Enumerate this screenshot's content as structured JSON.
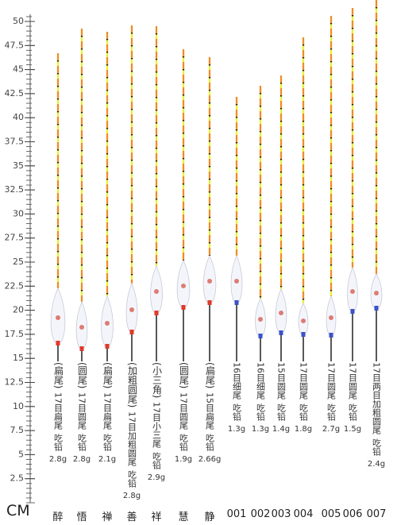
{
  "ruler": {
    "unit": "CM",
    "ticks": [
      2.5,
      5,
      7.5,
      10,
      12.5,
      15,
      17.5,
      20,
      22.5,
      25,
      27.5,
      30,
      32.5,
      35,
      37.5,
      40,
      42.5,
      45,
      47.5,
      50
    ]
  },
  "floats": [
    {
      "name": "醉",
      "tail": "(扁尾)",
      "spec": "17目扁尾",
      "lead": "吃铅",
      "weight": "2.8g"
    },
    {
      "name": "悟",
      "tail": "(圆尾)",
      "spec": "17目圆尾",
      "lead": "吃铅",
      "weight": "2.8g"
    },
    {
      "name": "禅",
      "tail": "(扁尾)",
      "spec": "17目扁尾",
      "lead": "吃铅",
      "weight": "2.1g"
    },
    {
      "name": "善",
      "tail": "(加粗圆尾)",
      "spec": "17目加粗圆尾",
      "lead": "吃铅",
      "weight": "2.8g"
    },
    {
      "name": "祥",
      "tail": "(小三角)",
      "spec": "17目小三尾",
      "lead": "吃铅",
      "weight": "2.9g"
    },
    {
      "name": "慧",
      "tail": "(圆尾)",
      "spec": "17目圆尾",
      "lead": "吃铅",
      "weight": "1.9g"
    },
    {
      "name": "静",
      "tail": "(扁尾)",
      "spec": "15目扁尾",
      "lead": "吃铅",
      "weight": "2.66g"
    },
    {
      "name": "001",
      "spec": "16目细尾",
      "lead": "吃铅",
      "weight": "1.3g"
    },
    {
      "name": "002",
      "spec": "16目细尾",
      "lead": "吃铅",
      "weight": "1.3g"
    },
    {
      "name": "003",
      "spec": "15目圆尾",
      "lead": "吃铅",
      "weight": "1.4g"
    },
    {
      "name": "004",
      "spec": "17目圆尾",
      "lead": "吃铅",
      "weight": "1.8g"
    },
    {
      "name": "005",
      "spec": "17目圆尾",
      "lead": "吃铅",
      "weight": "2.7g"
    },
    {
      "name": "006",
      "spec": "17目圆尾",
      "lead": "吃铅",
      "weight": "1.5g"
    },
    {
      "name": "007",
      "spec": "17目两目加粗圆尾",
      "lead": "吃铅",
      "weight": "2.4g"
    }
  ]
}
